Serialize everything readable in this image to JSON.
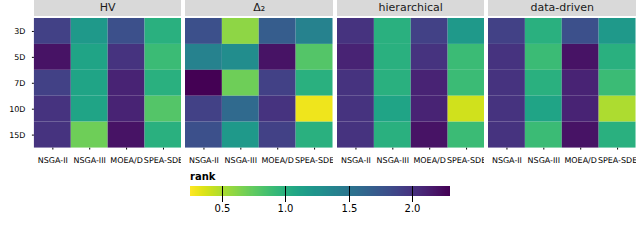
{
  "chart_data": {
    "type": "heatmap",
    "x_categories": [
      "NSGA-II",
      "NSGA-III",
      "MOEA/D",
      "SPEA-SDE"
    ],
    "y_categories": [
      "3D",
      "5D",
      "7D",
      "10D",
      "15D"
    ],
    "panels": [
      {
        "title": "HV",
        "values": [
          [
            1.9,
            1.2,
            1.8,
            1.0
          ],
          [
            2.2,
            1.1,
            2.0,
            0.9
          ],
          [
            1.9,
            1.1,
            2.1,
            1.0
          ],
          [
            2.0,
            1.1,
            2.1,
            0.8
          ],
          [
            2.0,
            0.7,
            2.2,
            1.0
          ]
        ]
      },
      {
        "title": "Δ₂",
        "values": [
          [
            1.8,
            0.6,
            1.7,
            1.4
          ],
          [
            1.4,
            1.3,
            2.2,
            0.8
          ],
          [
            2.3,
            0.7,
            1.9,
            1.0
          ],
          [
            1.9,
            1.6,
            2.0,
            0.3
          ],
          [
            1.8,
            1.2,
            1.9,
            1.0
          ]
        ]
      },
      {
        "title": "hierarchical",
        "values": [
          [
            2.0,
            1.0,
            1.9,
            1.2
          ],
          [
            2.1,
            1.0,
            2.0,
            0.9
          ],
          [
            2.0,
            1.0,
            2.1,
            0.9
          ],
          [
            2.0,
            1.1,
            2.1,
            0.4
          ],
          [
            2.0,
            1.0,
            2.2,
            0.9
          ]
        ]
      },
      {
        "title": "data-driven",
        "values": [
          [
            1.9,
            1.0,
            1.8,
            1.2
          ],
          [
            2.0,
            0.9,
            2.2,
            1.0
          ],
          [
            2.0,
            1.0,
            2.1,
            0.9
          ],
          [
            2.0,
            1.1,
            2.1,
            0.5
          ],
          [
            2.0,
            0.9,
            2.2,
            1.0
          ]
        ]
      }
    ],
    "color": "viridis",
    "color_label": "rank",
    "color_range": [
      0.25,
      2.3
    ],
    "color_ticks": [
      {
        "value": 0.5,
        "label": "0.5"
      },
      {
        "value": 1,
        "label": "1.0"
      },
      {
        "value": 1.5,
        "label": "1.5"
      },
      {
        "value": 2,
        "label": "2.0"
      }
    ]
  }
}
